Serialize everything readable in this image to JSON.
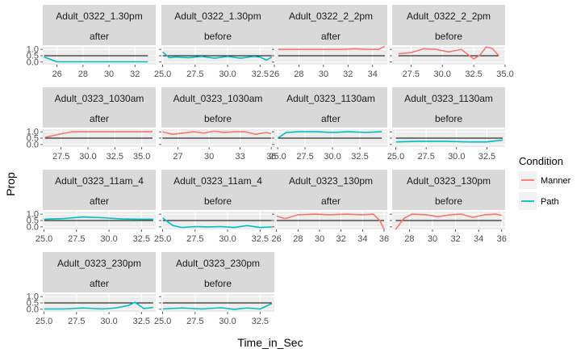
{
  "chart_data": {
    "type": "line",
    "xlabel": "Time_in_Sec",
    "ylabel": "Prop",
    "legend": {
      "title": "Condition",
      "placement": "right",
      "entries": [
        {
          "name": "Manner",
          "color": "#F8766D"
        },
        {
          "name": "Path",
          "color": "#00BFC4"
        }
      ]
    },
    "y_ticks": [
      "1.0",
      "0.5",
      "0.0"
    ],
    "ylim": [
      -0.2,
      1.2
    ],
    "reference_line_y": 0.5,
    "facet_layout": {
      "columns": 4,
      "rows": 4,
      "facet_labels_per_panel": 2
    },
    "panels": [
      {
        "strip1": "Adult_0322_1.30pm",
        "strip2": "after",
        "xlim": [
          24.9,
          33.6
        ],
        "x_ticks": [
          26,
          28,
          30,
          32
        ],
        "x_tick_labels": [
          "26",
          "28",
          "30",
          "32"
        ],
        "series": [
          {
            "name": "Path",
            "x": [
              25,
              26,
              27,
              28,
              29,
              30,
              31,
              32,
              33
            ],
            "y": [
              0.4,
              0.02,
              0.02,
              0.02,
              0.02,
              0.02,
              0.02,
              0.02,
              0.02
            ]
          }
        ]
      },
      {
        "strip1": "Adult_0322_1.30pm",
        "strip2": "before",
        "xlim": [
          24.9,
          33.6
        ],
        "x_ticks": [
          25.0,
          27.5,
          30.0,
          32.5
        ],
        "x_tick_labels": [
          "25.0",
          "27.5",
          "30.0",
          "32.5"
        ],
        "series": [
          {
            "name": "Path",
            "x": [
              25,
              25.5,
              26,
              27,
              28,
              29,
              30,
              31,
              32,
              32.5,
              33,
              33.4
            ],
            "y": [
              0.8,
              0.35,
              0.4,
              0.35,
              0.45,
              0.3,
              0.45,
              0.3,
              0.45,
              0.4,
              0.15,
              0.4
            ]
          }
        ]
      },
      {
        "strip1": "Adult_0322_2_2pm",
        "strip2": "after",
        "xlim": [
          26,
          35.2
        ],
        "x_ticks": [
          26,
          28,
          30,
          32,
          34
        ],
        "x_tick_labels": [
          "26",
          "28",
          "30",
          "32",
          "34"
        ],
        "series": [
          {
            "name": "Manner",
            "x": [
              26.3,
              28,
              30,
              31.5,
              32.5,
              33.5,
              34.5,
              35
            ],
            "y": [
              1.0,
              1.0,
              1.0,
              1.0,
              1.05,
              1.0,
              1.0,
              1.25
            ]
          }
        ]
      },
      {
        "strip1": "Adult_0322_2_2pm",
        "strip2": "before",
        "xlim": [
          26,
          35
        ],
        "x_ticks": [
          27.5,
          30.0,
          32.5,
          35.0
        ],
        "x_tick_labels": [
          "27.5",
          "30.0",
          "32.5",
          "35.0"
        ],
        "series": [
          {
            "name": "Manner",
            "x": [
              26.5,
              27.5,
              28.5,
              29.5,
              30.5,
              31.5,
              32.5,
              33,
              33.5,
              34,
              34.5
            ],
            "y": [
              0.65,
              0.75,
              1.05,
              1.0,
              0.8,
              1.0,
              0.25,
              0.55,
              1.2,
              1.05,
              0.5
            ]
          }
        ]
      },
      {
        "strip1": "Adult_0323_1030am",
        "strip2": "after",
        "xlim": [
          25.8,
          36.3
        ],
        "x_ticks": [
          27.5,
          30.0,
          32.5,
          35.0
        ],
        "x_tick_labels": [
          "27.5",
          "30.0",
          "32.5",
          "35.0"
        ],
        "series": [
          {
            "name": "Manner",
            "x": [
              26,
              27,
              28.5,
              30,
              32,
              34,
              36
            ],
            "y": [
              0.55,
              0.75,
              1.0,
              1.0,
              1.0,
              1.0,
              1.0
            ]
          }
        ]
      },
      {
        "strip1": "Adult_0323_1030am",
        "strip2": "before",
        "xlim": [
          25.4,
          36.3
        ],
        "x_ticks": [
          27,
          30,
          33,
          36
        ],
        "x_tick_labels": [
          "27",
          "30",
          "33",
          "36"
        ],
        "series": [
          {
            "name": "Manner",
            "x": [
              25.5,
              26.5,
              27.5,
              28.5,
              29.5,
              30.5,
              31.5,
              32.5,
              33.5,
              34.5,
              35.5,
              36
            ],
            "y": [
              1.0,
              0.8,
              0.9,
              1.0,
              0.9,
              1.05,
              0.95,
              1.0,
              1.0,
              0.8,
              0.95,
              0.85
            ]
          }
        ]
      },
      {
        "strip1": "Adult_0323_1130am",
        "strip2": "after",
        "xlim": [
          24.7,
          35.0
        ],
        "x_ticks": [
          25.0,
          27.5,
          30.0,
          32.5
        ],
        "x_tick_labels": [
          "25.0",
          "27.5",
          "30.0",
          "32.5"
        ],
        "series": [
          {
            "name": "Path",
            "x": [
              25,
              25.8,
              27,
              28.5,
              30,
              31.5,
              33,
              34.5
            ],
            "y": [
              0.5,
              0.95,
              1.0,
              1.0,
              0.95,
              1.0,
              0.95,
              1.0
            ]
          }
        ]
      },
      {
        "strip1": "Adult_0323_1130am",
        "strip2": "before",
        "xlim": [
          24.7,
          34.0
        ],
        "x_ticks": [
          25.0,
          27.5,
          30.0,
          32.5
        ],
        "x_tick_labels": [
          "25.0",
          "27.5",
          "30.0",
          "32.5"
        ],
        "series": [
          {
            "name": "Path",
            "x": [
              25,
              27,
              29,
              31,
              32.5,
              33.8
            ],
            "y": [
              0.2,
              0.25,
              0.25,
              0.2,
              0.2,
              0.35
            ]
          }
        ]
      },
      {
        "strip1": "Adult_0323_11am_4",
        "strip2": "after",
        "xlim": [
          24.9,
          33.6
        ],
        "x_ticks": [
          25.0,
          27.5,
          30.0,
          32.5
        ],
        "x_tick_labels": [
          "25.0",
          "27.5",
          "30.0",
          "32.5"
        ],
        "series": [
          {
            "name": "Path",
            "x": [
              25,
              26.5,
              28,
              29.5,
              31,
              32.5,
              33.4
            ],
            "y": [
              0.6,
              0.65,
              0.78,
              0.72,
              0.62,
              0.6,
              0.6
            ]
          }
        ]
      },
      {
        "strip1": "Adult_0323_11am_4",
        "strip2": "before",
        "xlim": [
          24.9,
          33.6
        ],
        "x_ticks": [
          25.0,
          27.5,
          30.0,
          32.5
        ],
        "x_tick_labels": [
          "25.0",
          "27.5",
          "30.0",
          "32.5"
        ],
        "series": [
          {
            "name": "Path",
            "x": [
              25,
              25.8,
              26.5,
              27.5,
              28.5,
              29.5,
              30.5,
              31.5,
              32.5,
              33.4
            ],
            "y": [
              0.7,
              0.1,
              -0.05,
              0.02,
              0.0,
              0.02,
              -0.05,
              0.1,
              -0.05,
              0.0
            ]
          }
        ]
      },
      {
        "strip1": "Adult_0323_130pm",
        "strip2": "after",
        "xlim": [
          25.8,
          36.3
        ],
        "x_ticks": [
          26,
          28,
          30,
          32,
          34,
          36
        ],
        "x_tick_labels": [
          "26",
          "28",
          "30",
          "32",
          "34",
          "36"
        ],
        "series": [
          {
            "name": "Manner",
            "x": [
              26,
              26.8,
              28,
              29.5,
              31,
              32.5,
              34,
              35,
              35.6,
              36
            ],
            "y": [
              0.85,
              0.65,
              0.95,
              1.0,
              0.95,
              1.0,
              0.95,
              1.0,
              0.5,
              -0.2
            ]
          }
        ]
      },
      {
        "strip1": "Adult_0323_130pm",
        "strip2": "before",
        "xlim": [
          26.5,
          36.3
        ],
        "x_ticks": [
          28,
          30,
          32,
          34,
          36
        ],
        "x_tick_labels": [
          "28",
          "30",
          "32",
          "34",
          "36"
        ],
        "series": [
          {
            "name": "Manner",
            "x": [
              26.8,
              27.5,
              28.2,
              29.5,
              30.5,
              31.5,
              32.5,
              33.5,
              34.5,
              35.5,
              36
            ],
            "y": [
              -0.2,
              0.65,
              1.0,
              0.95,
              0.8,
              0.95,
              1.0,
              0.75,
              0.95,
              1.0,
              0.9
            ]
          }
        ]
      },
      {
        "strip1": "Adult_0323_230pm",
        "strip2": "after",
        "xlim": [
          24.9,
          33.6
        ],
        "x_ticks": [
          25.0,
          27.5,
          30.0,
          32.5
        ],
        "x_tick_labels": [
          "25.0",
          "27.5",
          "30.0",
          "32.5"
        ],
        "series": [
          {
            "name": "Path",
            "x": [
              25,
              26.5,
              28,
              29.5,
              30.5,
              31.5,
              32,
              32.7,
              33.4
            ],
            "y": [
              0.02,
              0.02,
              0.1,
              0.02,
              0.1,
              0.3,
              0.55,
              0.05,
              0.15
            ]
          }
        ]
      },
      {
        "strip1": "Adult_0323_230pm",
        "strip2": "before",
        "xlim": [
          24.9,
          33.6
        ],
        "x_ticks": [
          25.0,
          27.5,
          30.0,
          32.5
        ],
        "x_tick_labels": [
          "25.0",
          "27.5",
          "30.0",
          "32.5"
        ],
        "series": [
          {
            "name": "Path",
            "x": [
              25,
              26.5,
              28,
              29.5,
              30.5,
              31.5,
              32.5,
              33.4
            ],
            "y": [
              0.02,
              0.1,
              0.02,
              0.12,
              0.0,
              0.1,
              0.02,
              0.45
            ]
          }
        ]
      }
    ]
  }
}
